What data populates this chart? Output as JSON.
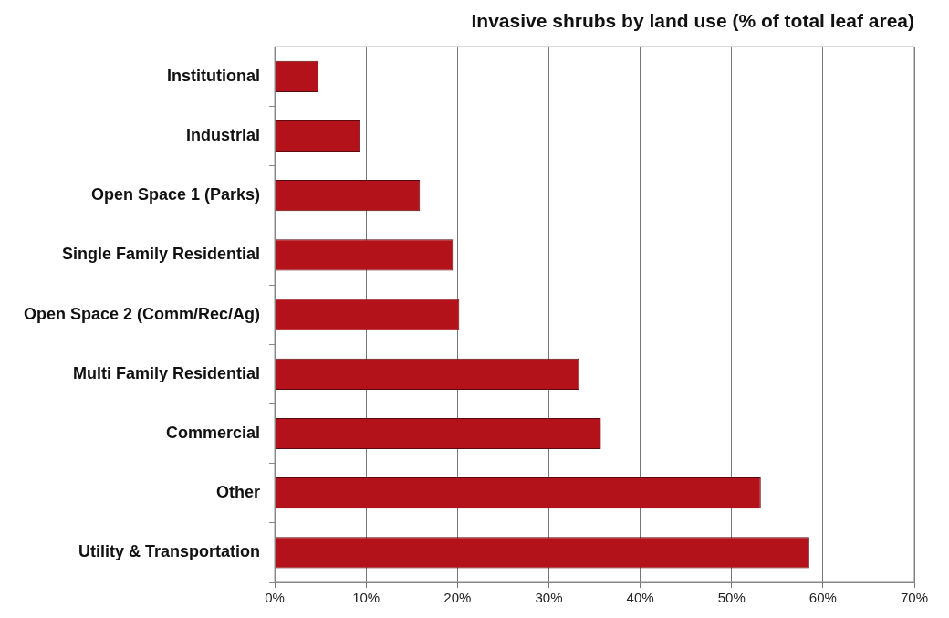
{
  "chart_data": {
    "type": "bar",
    "orientation": "horizontal",
    "title": "Invasive shrubs by land use (% of total leaf area)",
    "categories": [
      "Institutional",
      "Industrial",
      "Open Space 1 (Parks)",
      "Single Family Residential",
      "Open Space 2 (Comm/Rec/Ag)",
      "Multi Family Residential",
      "Commercial",
      "Other",
      "Utility & Transportation"
    ],
    "values": [
      4.8,
      9.3,
      15.9,
      19.5,
      20.2,
      33.3,
      35.7,
      53.2,
      58.5
    ],
    "color": "#b3121b",
    "xlim": [
      0,
      70
    ],
    "xticks": [
      {
        "value": 0,
        "label": "0%"
      },
      {
        "value": 10,
        "label": "10%"
      },
      {
        "value": 20,
        "label": "20%"
      },
      {
        "value": 30,
        "label": "30%"
      },
      {
        "value": 40,
        "label": "40%"
      },
      {
        "value": 50,
        "label": "50%"
      },
      {
        "value": 60,
        "label": "60%"
      },
      {
        "value": 70,
        "label": "70%"
      }
    ],
    "grid": "x",
    "legend": false
  }
}
